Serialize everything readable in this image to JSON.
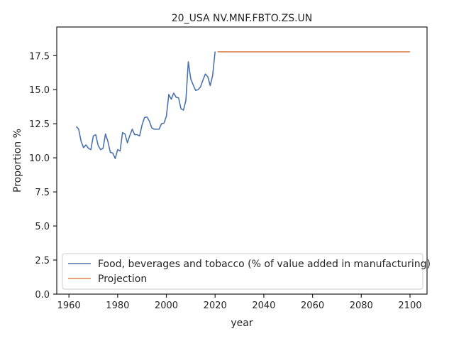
{
  "chart_data": {
    "type": "line",
    "title": "20_USA NV.MNF.FBTO.ZS.UN",
    "xlabel": "year",
    "ylabel": "Proportion %",
    "xlim": [
      1955,
      2107
    ],
    "ylim": [
      0,
      19.6
    ],
    "xticks": [
      1960,
      1980,
      2000,
      2020,
      2040,
      2060,
      2080,
      2100
    ],
    "yticks": [
      0.0,
      2.5,
      5.0,
      7.5,
      10.0,
      12.5,
      15.0,
      17.5
    ],
    "ytick_labels": [
      "0.0",
      "2.5",
      "5.0",
      "7.5",
      "10.0",
      "12.5",
      "15.0",
      "17.5"
    ],
    "grid": false,
    "legend_position": "lower-left",
    "series": [
      {
        "name": "Food, beverages and tobacco (% of value added in manufacturing)",
        "color": "#4c72b0",
        "x": [
          1963,
          1964,
          1965,
          1966,
          1967,
          1968,
          1969,
          1970,
          1971,
          1972,
          1973,
          1974,
          1975,
          1976,
          1977,
          1978,
          1979,
          1980,
          1981,
          1982,
          1983,
          1984,
          1985,
          1986,
          1987,
          1988,
          1989,
          1990,
          1991,
          1992,
          1993,
          1994,
          1995,
          1996,
          1997,
          1998,
          1999,
          2000,
          2001,
          2002,
          2003,
          2004,
          2005,
          2006,
          2007,
          2008,
          2009,
          2010,
          2011,
          2012,
          2013,
          2014,
          2015,
          2016,
          2017,
          2018,
          2019,
          2020
        ],
        "y": [
          12.3,
          12.1,
          11.2,
          10.75,
          10.95,
          10.7,
          10.6,
          11.6,
          11.7,
          10.9,
          10.6,
          10.7,
          11.75,
          11.2,
          10.4,
          10.35,
          9.95,
          10.6,
          10.5,
          11.85,
          11.75,
          11.1,
          11.65,
          12.1,
          11.7,
          11.7,
          11.6,
          12.4,
          12.95,
          13.0,
          12.7,
          12.2,
          12.1,
          12.1,
          12.1,
          12.5,
          12.55,
          13.05,
          14.65,
          14.3,
          14.75,
          14.45,
          14.4,
          13.6,
          13.5,
          14.2,
          17.05,
          15.8,
          15.35,
          14.95,
          15.0,
          15.2,
          15.7,
          16.15,
          15.95,
          15.3,
          16.05,
          17.8
        ]
      },
      {
        "name": "Projection",
        "color": "#dd8452",
        "x": [
          2021,
          2100
        ],
        "y": [
          17.78,
          17.78
        ]
      }
    ]
  }
}
